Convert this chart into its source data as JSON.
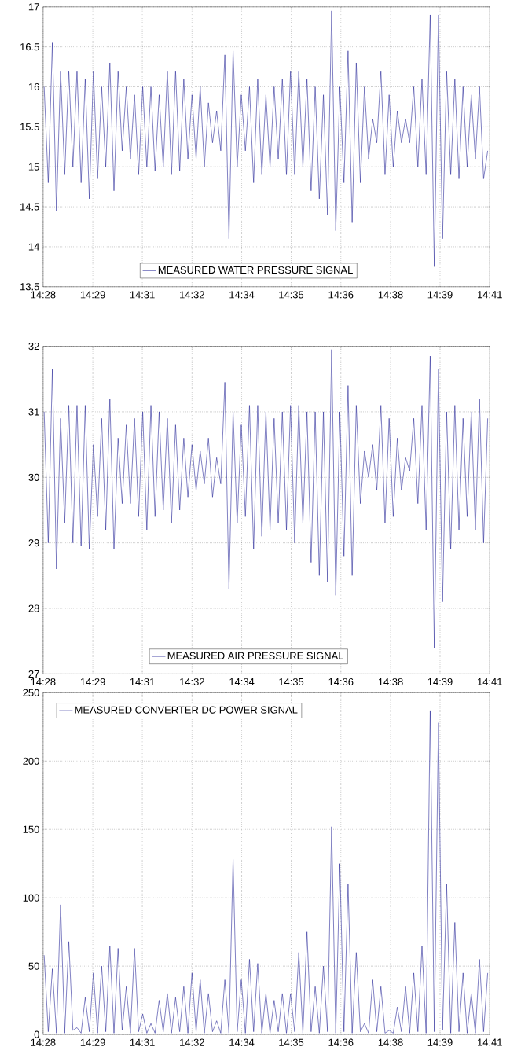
{
  "chart_data": [
    {
      "type": "line",
      "xlim": [
        14.4625,
        14.68
      ],
      "ylim": [
        13.5,
        17
      ],
      "xticks": [
        {
          "value": 14.4625,
          "label": "14:28"
        },
        {
          "value": 14.4867,
          "label": "14:29"
        },
        {
          "value": 14.5108,
          "label": "14:31"
        },
        {
          "value": 14.535,
          "label": "14:32"
        },
        {
          "value": 14.5592,
          "label": "14:34"
        },
        {
          "value": 14.5833,
          "label": "14:35"
        },
        {
          "value": 14.6075,
          "label": "14:36"
        },
        {
          "value": 14.6317,
          "label": "14:38"
        },
        {
          "value": 14.6558,
          "label": "14:39"
        },
        {
          "value": 14.68,
          "label": "14:41"
        }
      ],
      "yticks": [
        13.5,
        14,
        14.5,
        15,
        15.5,
        16,
        16.5,
        17
      ],
      "grid": true,
      "legend": "bottom",
      "x": [
        14.463,
        14.465,
        14.467,
        14.469,
        14.471,
        14.473,
        14.475,
        14.477,
        14.479,
        14.481,
        14.483,
        14.485,
        14.487,
        14.489,
        14.491,
        14.493,
        14.495,
        14.497,
        14.499,
        14.501,
        14.503,
        14.505,
        14.507,
        14.509,
        14.511,
        14.513,
        14.515,
        14.517,
        14.519,
        14.521,
        14.523,
        14.525,
        14.527,
        14.529,
        14.531,
        14.533,
        14.535,
        14.537,
        14.539,
        14.541,
        14.543,
        14.545,
        14.547,
        14.549,
        14.551,
        14.553,
        14.555,
        14.557,
        14.559,
        14.561,
        14.563,
        14.565,
        14.567,
        14.569,
        14.571,
        14.573,
        14.575,
        14.577,
        14.579,
        14.581,
        14.583,
        14.585,
        14.587,
        14.589,
        14.591,
        14.593,
        14.595,
        14.597,
        14.599,
        14.601,
        14.603,
        14.605,
        14.607,
        14.609,
        14.611,
        14.613,
        14.615,
        14.617,
        14.619,
        14.621,
        14.623,
        14.625,
        14.627,
        14.629,
        14.631,
        14.633,
        14.635,
        14.637,
        14.639,
        14.641,
        14.643,
        14.645,
        14.647,
        14.649,
        14.651,
        14.653,
        14.655,
        14.657,
        14.659,
        14.661,
        14.663,
        14.665,
        14.667,
        14.669,
        14.671,
        14.673,
        14.675,
        14.677,
        14.679
      ],
      "series": [
        {
          "name": "MEASURED WATER PRESSURE SIGNAL",
          "color": "#2a2a9a",
          "values": [
            16.0,
            14.8,
            16.55,
            14.45,
            16.2,
            14.9,
            16.2,
            15.0,
            16.2,
            14.8,
            16.1,
            14.6,
            16.2,
            14.85,
            16.0,
            15.0,
            16.3,
            14.7,
            16.2,
            15.2,
            16.0,
            15.1,
            15.9,
            14.9,
            16.0,
            15.0,
            16.0,
            14.95,
            15.9,
            15.0,
            16.2,
            14.9,
            16.2,
            14.95,
            16.1,
            15.1,
            15.9,
            15.1,
            16.0,
            15.0,
            15.8,
            15.3,
            15.7,
            15.2,
            16.4,
            14.1,
            16.45,
            15.0,
            15.9,
            15.2,
            16.0,
            14.8,
            16.1,
            14.9,
            15.9,
            15.0,
            16.0,
            15.1,
            16.1,
            14.9,
            16.2,
            14.9,
            16.2,
            15.0,
            16.1,
            14.7,
            16.0,
            14.6,
            15.9,
            14.4,
            16.95,
            14.2,
            16.0,
            14.8,
            16.45,
            14.3,
            16.3,
            14.8,
            16.0,
            15.1,
            15.6,
            15.3,
            16.2,
            14.9,
            15.9,
            15.0,
            15.7,
            15.3,
            15.6,
            15.3,
            16.0,
            15.0,
            16.1,
            14.9,
            16.9,
            13.75,
            16.9,
            14.1,
            16.2,
            14.9,
            16.1,
            14.85,
            16.0,
            15.0,
            15.9,
            15.1,
            16.0,
            14.85,
            15.2
          ]
        }
      ]
    },
    {
      "type": "line",
      "xlim": [
        14.4625,
        14.68
      ],
      "ylim": [
        27,
        32
      ],
      "xticks": [
        {
          "value": 14.4625,
          "label": "14:28"
        },
        {
          "value": 14.4867,
          "label": "14:29"
        },
        {
          "value": 14.5108,
          "label": "14:31"
        },
        {
          "value": 14.535,
          "label": "14:32"
        },
        {
          "value": 14.5592,
          "label": "14:34"
        },
        {
          "value": 14.5833,
          "label": "14:35"
        },
        {
          "value": 14.6075,
          "label": "14:36"
        },
        {
          "value": 14.6317,
          "label": "14:38"
        },
        {
          "value": 14.6558,
          "label": "14:39"
        },
        {
          "value": 14.68,
          "label": "14:41"
        }
      ],
      "yticks": [
        27,
        28,
        29,
        30,
        31,
        32
      ],
      "grid": true,
      "legend": "bottom",
      "x": [
        14.463,
        14.465,
        14.467,
        14.469,
        14.471,
        14.473,
        14.475,
        14.477,
        14.479,
        14.481,
        14.483,
        14.485,
        14.487,
        14.489,
        14.491,
        14.493,
        14.495,
        14.497,
        14.499,
        14.501,
        14.503,
        14.505,
        14.507,
        14.509,
        14.511,
        14.513,
        14.515,
        14.517,
        14.519,
        14.521,
        14.523,
        14.525,
        14.527,
        14.529,
        14.531,
        14.533,
        14.535,
        14.537,
        14.539,
        14.541,
        14.543,
        14.545,
        14.547,
        14.549,
        14.551,
        14.553,
        14.555,
        14.557,
        14.559,
        14.561,
        14.563,
        14.565,
        14.567,
        14.569,
        14.571,
        14.573,
        14.575,
        14.577,
        14.579,
        14.581,
        14.583,
        14.585,
        14.587,
        14.589,
        14.591,
        14.593,
        14.595,
        14.597,
        14.599,
        14.601,
        14.603,
        14.605,
        14.607,
        14.609,
        14.611,
        14.613,
        14.615,
        14.617,
        14.619,
        14.621,
        14.623,
        14.625,
        14.627,
        14.629,
        14.631,
        14.633,
        14.635,
        14.637,
        14.639,
        14.641,
        14.643,
        14.645,
        14.647,
        14.649,
        14.651,
        14.653,
        14.655,
        14.657,
        14.659,
        14.661,
        14.663,
        14.665,
        14.667,
        14.669,
        14.671,
        14.673,
        14.675,
        14.677,
        14.679
      ],
      "series": [
        {
          "name": "MEASURED AIR PRESSURE SIGNAL",
          "color": "#2a2a9a",
          "values": [
            31.0,
            29.0,
            31.65,
            28.6,
            30.9,
            29.3,
            31.1,
            29.0,
            31.1,
            28.95,
            31.1,
            28.9,
            30.5,
            29.4,
            30.9,
            29.2,
            31.2,
            28.9,
            30.6,
            29.6,
            30.8,
            29.6,
            30.9,
            29.4,
            31.0,
            29.2,
            31.1,
            29.4,
            31.0,
            29.5,
            30.9,
            29.3,
            30.8,
            29.5,
            30.6,
            29.7,
            30.5,
            29.8,
            30.4,
            29.9,
            30.6,
            29.7,
            30.3,
            29.9,
            31.45,
            28.3,
            31.0,
            29.3,
            30.8,
            29.4,
            31.1,
            28.9,
            31.1,
            29.1,
            31.0,
            29.2,
            30.9,
            29.3,
            31.0,
            29.2,
            31.1,
            29.0,
            31.1,
            29.3,
            31.0,
            28.7,
            31.0,
            28.5,
            31.0,
            28.4,
            31.95,
            28.2,
            31.0,
            28.8,
            31.4,
            28.5,
            31.1,
            29.6,
            30.4,
            30.0,
            30.5,
            29.8,
            31.1,
            29.3,
            30.9,
            29.4,
            30.6,
            29.8,
            30.3,
            30.1,
            30.9,
            29.6,
            31.1,
            29.2,
            31.85,
            27.4,
            31.65,
            28.1,
            31.0,
            28.9,
            31.1,
            29.2,
            30.9,
            29.4,
            31.0,
            29.2,
            31.2,
            29.0,
            30.9
          ]
        }
      ]
    },
    {
      "type": "line",
      "xlim": [
        14.4625,
        14.68
      ],
      "ylim": [
        0,
        250
      ],
      "xticks": [
        {
          "value": 14.4625,
          "label": "14:28"
        },
        {
          "value": 14.4867,
          "label": "14:29"
        },
        {
          "value": 14.5108,
          "label": "14:31"
        },
        {
          "value": 14.535,
          "label": "14:32"
        },
        {
          "value": 14.5592,
          "label": "14:34"
        },
        {
          "value": 14.5833,
          "label": "14:35"
        },
        {
          "value": 14.6075,
          "label": "14:36"
        },
        {
          "value": 14.6317,
          "label": "14:38"
        },
        {
          "value": 14.6558,
          "label": "14:39"
        },
        {
          "value": 14.68,
          "label": "14:41"
        }
      ],
      "yticks": [
        0,
        50,
        100,
        150,
        200,
        250
      ],
      "grid": true,
      "legend": "top left",
      "x": [
        14.463,
        14.465,
        14.467,
        14.469,
        14.471,
        14.473,
        14.475,
        14.477,
        14.479,
        14.481,
        14.483,
        14.485,
        14.487,
        14.489,
        14.491,
        14.493,
        14.495,
        14.497,
        14.499,
        14.501,
        14.503,
        14.505,
        14.507,
        14.509,
        14.511,
        14.513,
        14.515,
        14.517,
        14.519,
        14.521,
        14.523,
        14.525,
        14.527,
        14.529,
        14.531,
        14.533,
        14.535,
        14.537,
        14.539,
        14.541,
        14.543,
        14.545,
        14.547,
        14.549,
        14.551,
        14.553,
        14.555,
        14.557,
        14.559,
        14.561,
        14.563,
        14.565,
        14.567,
        14.569,
        14.571,
        14.573,
        14.575,
        14.577,
        14.579,
        14.581,
        14.583,
        14.585,
        14.587,
        14.589,
        14.591,
        14.593,
        14.595,
        14.597,
        14.599,
        14.601,
        14.603,
        14.605,
        14.607,
        14.609,
        14.611,
        14.613,
        14.615,
        14.617,
        14.619,
        14.621,
        14.623,
        14.625,
        14.627,
        14.629,
        14.631,
        14.633,
        14.635,
        14.637,
        14.639,
        14.641,
        14.643,
        14.645,
        14.647,
        14.649,
        14.651,
        14.653,
        14.655,
        14.657,
        14.659,
        14.661,
        14.663,
        14.665,
        14.667,
        14.669,
        14.671,
        14.673,
        14.675,
        14.677,
        14.679
      ],
      "series": [
        {
          "name": "MEASURED CONVERTER DC POWER SIGNAL",
          "color": "#2a2a9a",
          "values": [
            58,
            2,
            48,
            1,
            95,
            1,
            68,
            3,
            5,
            1,
            27,
            2,
            45,
            1,
            50,
            2,
            65,
            1,
            63,
            3,
            35,
            1,
            63,
            2,
            15,
            1,
            8,
            1,
            25,
            2,
            30,
            1,
            27,
            2,
            35,
            1,
            45,
            2,
            40,
            1,
            30,
            2,
            10,
            1,
            40,
            1,
            128,
            2,
            40,
            1,
            55,
            2,
            52,
            1,
            30,
            1,
            25,
            2,
            30,
            1,
            30,
            2,
            60,
            1,
            75,
            2,
            35,
            1,
            50,
            2,
            152,
            1,
            125,
            2,
            110,
            1,
            60,
            2,
            8,
            1,
            40,
            2,
            35,
            1,
            3,
            1,
            20,
            2,
            35,
            1,
            45,
            2,
            65,
            1,
            237,
            2,
            228,
            3,
            110,
            1,
            82,
            2,
            45,
            1,
            30,
            1,
            55,
            2,
            45
          ]
        }
      ]
    }
  ]
}
